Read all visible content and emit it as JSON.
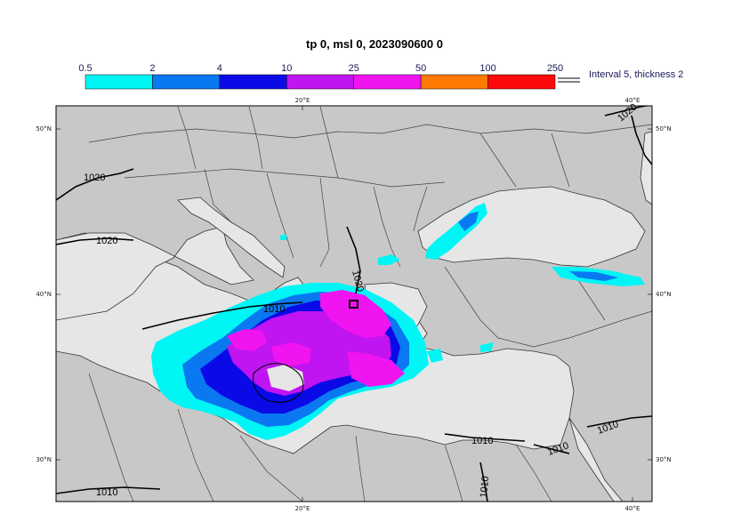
{
  "title": "tp 0, msl 0, 2023090600 0",
  "legend": {
    "ticks": [
      "0.5",
      "2",
      "4",
      "10",
      "25",
      "50",
      "100",
      "250"
    ],
    "colors": [
      "#00f5f5",
      "#0a78f0",
      "#0a0ae6",
      "#c014f0",
      "#f014f0",
      "#ff7a00",
      "#ff0a0a"
    ],
    "isobar_note": "Interval 5, thickness 2"
  },
  "axes": {
    "top_lon": [
      "20°E",
      "40°E"
    ],
    "bottom_lon": [
      "20°E",
      "40°E"
    ],
    "left_lat": [
      "50°N",
      "40°N",
      "30°N"
    ],
    "right_lat": [
      "50°N",
      "40°N",
      "30°N"
    ]
  },
  "isobars": [
    "1020",
    "1020",
    "1020",
    "1010",
    "1020",
    "1010",
    "1010",
    "1010",
    "1010",
    "1010"
  ],
  "colors": {
    "land": "#c8c8c8",
    "sea": "#e6e6e6",
    "border": "#444444"
  }
}
